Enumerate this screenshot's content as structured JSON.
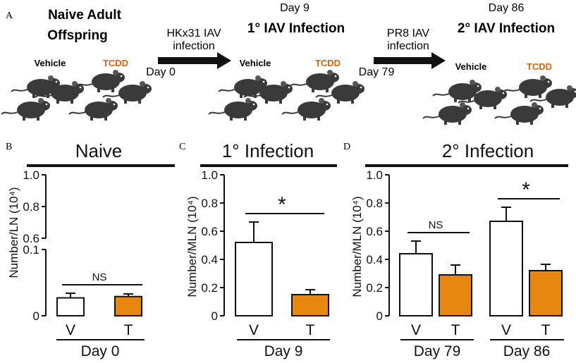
{
  "panel_a": {
    "letter": "A",
    "naive_title_line1": "Naive Adult",
    "naive_title_line2": "Offspring",
    "vehicle_label": "Vehicle",
    "tcdd_label": "TCDD",
    "arrow1_line1": "HKx31 IAV",
    "arrow1_line2": "infection",
    "arrow1_day": "Day 0",
    "infection1_day": "Day 9",
    "infection1_title": "1° IAV Infection",
    "arrow2_line1": "PR8 IAV",
    "arrow2_line2": "infection",
    "arrow2_day": "Day 79",
    "infection2_day": "Day 86",
    "infection2_title": "2° IAV Infection",
    "colors": {
      "tcdd": "#d9620f",
      "mouse": "#3a3a3a",
      "text": "#111111"
    }
  },
  "chart_data": [
    {
      "panel": "B",
      "type": "bar",
      "title": "Naive",
      "ylabel": "Number/LN (10⁴)",
      "broken_axis": true,
      "ylim_lower": [
        0,
        0.1
      ],
      "ylim_upper": [
        0.6,
        1.0
      ],
      "yticks_lower": [
        "0",
        "0.1"
      ],
      "yticks_upper": [
        "0.6",
        "0.8",
        "1.0"
      ],
      "categories": [
        "V",
        "T"
      ],
      "group_labels": [
        "Day 0"
      ],
      "values": [
        0.027,
        0.029
      ],
      "errors": [
        0.007,
        0.004
      ],
      "colors": [
        "#ffffff",
        "#e8870f"
      ],
      "annotation": "NS"
    },
    {
      "panel": "C",
      "type": "bar",
      "title": "1° Infection",
      "ylabel": "Number/MLN (10⁴)",
      "ylim": [
        0,
        1.0
      ],
      "yticks": [
        "0",
        "0.2",
        "0.4",
        "0.6",
        "0.8",
        "1.0"
      ],
      "categories": [
        "V",
        "T"
      ],
      "group_labels": [
        "Day 9"
      ],
      "values": [
        0.52,
        0.15
      ],
      "errors": [
        0.145,
        0.035
      ],
      "colors": [
        "#ffffff",
        "#e8870f"
      ],
      "annotation": "*"
    },
    {
      "panel": "D",
      "type": "bar",
      "title": "2° Infection",
      "ylabel": "Number/MLN (10⁴)",
      "ylim": [
        0,
        1.0
      ],
      "yticks": [
        "0",
        "0.2",
        "0.4",
        "0.6",
        "0.8",
        "1.0"
      ],
      "categories": [
        "V",
        "T",
        "V",
        "T"
      ],
      "group_labels": [
        "Day 79",
        "Day 86"
      ],
      "values": [
        0.44,
        0.29,
        0.67,
        0.32
      ],
      "errors": [
        0.09,
        0.07,
        0.1,
        0.045
      ],
      "colors": [
        "#ffffff",
        "#e8870f",
        "#ffffff",
        "#e8870f"
      ],
      "annotations": [
        "NS",
        "*"
      ]
    }
  ]
}
